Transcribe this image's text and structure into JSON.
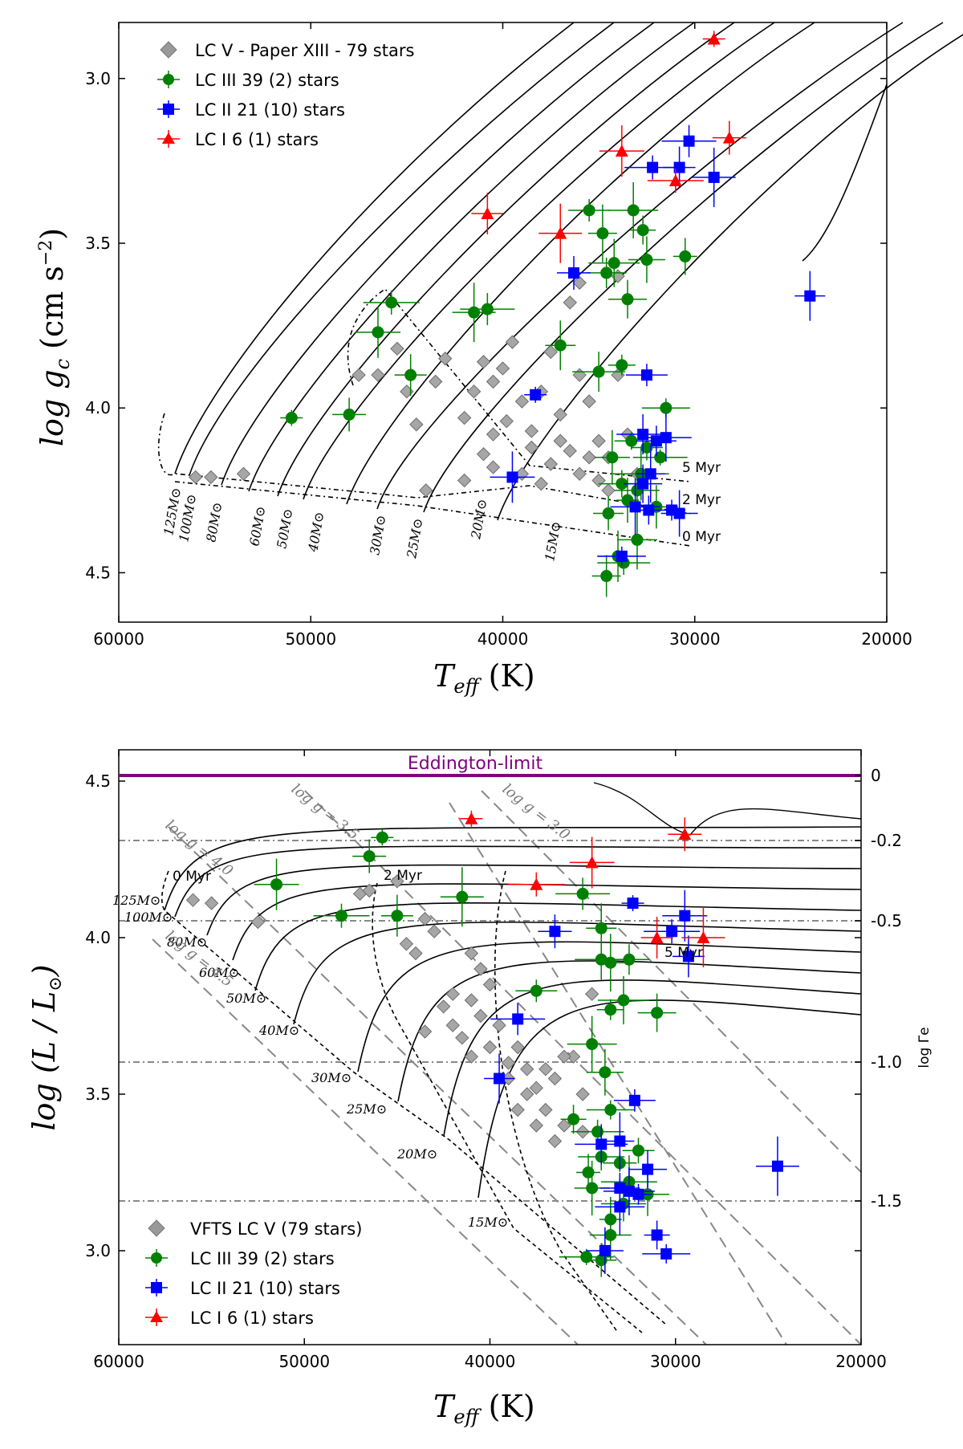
{
  "chart_data": [
    {
      "type": "scatter",
      "title": "",
      "xlabel": "T_eff (K)",
      "ylabel": "log g_c (cm s^-2)",
      "xlim": [
        60000,
        20000
      ],
      "ylim": [
        4.65,
        2.83
      ],
      "xticks": [
        "60000",
        "50000",
        "40000",
        "30000",
        "20000"
      ],
      "yticks": [
        "3.0",
        "3.5",
        "4.0",
        "4.5"
      ],
      "legend": [
        "LC V - Paper XIII - 79 stars",
        "LC III 39 (2) stars",
        "LC II  21 (10) stars",
        "LC I    6 (1) stars"
      ],
      "track_labels": [
        "125M⊙",
        "100M⊙",
        "80M⊙",
        "60M⊙",
        "50M⊙",
        "40M⊙",
        "30M⊙",
        "25M⊙",
        "20M⊙",
        "15M⊙"
      ],
      "isochrone_labels": [
        "5 Myr",
        "2 Myr",
        "0 Myr"
      ],
      "series": [
        {
          "name": "LC V",
          "marker": "diamond",
          "color": "#999999",
          "points": [
            [
              56000,
              4.21
            ],
            [
              55200,
              4.21
            ],
            [
              53500,
              4.2
            ],
            [
              47500,
              3.9
            ],
            [
              46500,
              3.9
            ],
            [
              45500,
              3.82
            ],
            [
              45000,
              3.95
            ],
            [
              44500,
              4.05
            ],
            [
              43500,
              3.92
            ],
            [
              43000,
              3.85
            ],
            [
              42000,
              4.03
            ],
            [
              41500,
              3.95
            ],
            [
              41000,
              3.86
            ],
            [
              40500,
              3.92
            ],
            [
              40000,
              3.88
            ],
            [
              39800,
              4.04
            ],
            [
              39500,
              3.8
            ],
            [
              39000,
              3.98
            ],
            [
              38500,
              4.12
            ],
            [
              38000,
              3.95
            ],
            [
              37500,
              3.83
            ],
            [
              37000,
              4.02
            ],
            [
              36500,
              3.68
            ],
            [
              36000,
              3.9
            ],
            [
              35500,
              3.98
            ],
            [
              35000,
              4.1
            ],
            [
              34500,
              4.15
            ],
            [
              34000,
              3.9
            ],
            [
              33500,
              4.08
            ],
            [
              41000,
              4.14
            ],
            [
              42000,
              4.22
            ],
            [
              40500,
              4.18
            ],
            [
              39000,
              4.2
            ],
            [
              38000,
              4.23
            ],
            [
              37500,
              4.17
            ],
            [
              36500,
              4.13
            ],
            [
              36000,
              4.2
            ],
            [
              35500,
              4.15
            ],
            [
              35000,
              4.22
            ],
            [
              34500,
              4.25
            ],
            [
              44000,
              4.25
            ],
            [
              36000,
              3.62
            ],
            [
              34000,
              3.6
            ],
            [
              40500,
              4.08
            ],
            [
              38500,
              4.07
            ],
            [
              37000,
              4.1
            ],
            [
              33000,
              4.2
            ]
          ]
        },
        {
          "name": "LC III",
          "marker": "circle",
          "color": "#008000",
          "points": [
            [
              51000,
              4.03
            ],
            [
              48000,
              4.02
            ],
            [
              46500,
              3.77
            ],
            [
              45800,
              3.68
            ],
            [
              44800,
              3.9
            ],
            [
              41500,
              3.71
            ],
            [
              40800,
              3.7
            ],
            [
              37000,
              3.81
            ],
            [
              35500,
              3.4
            ],
            [
              35000,
              3.89
            ],
            [
              34800,
              3.47
            ],
            [
              34600,
              3.59
            ],
            [
              34200,
              3.56
            ],
            [
              33800,
              3.87
            ],
            [
              33500,
              3.67
            ],
            [
              33200,
              3.4
            ],
            [
              32700,
              3.46
            ],
            [
              32500,
              3.55
            ],
            [
              31500,
              4.0
            ],
            [
              30500,
              3.54
            ],
            [
              34300,
              4.15
            ],
            [
              33800,
              4.23
            ],
            [
              33500,
              4.28
            ],
            [
              33300,
              4.1
            ],
            [
              33000,
              4.25
            ],
            [
              32800,
              4.2
            ],
            [
              32500,
              4.12
            ],
            [
              32000,
              4.3
            ],
            [
              31800,
              4.15
            ],
            [
              34500,
              4.32
            ],
            [
              34000,
              4.45
            ],
            [
              33700,
              4.47
            ],
            [
              34600,
              4.51
            ],
            [
              33000,
              4.4
            ]
          ]
        },
        {
          "name": "LC II",
          "marker": "square",
          "color": "#0000ff",
          "points": [
            [
              38300,
              3.96
            ],
            [
              36300,
              3.59
            ],
            [
              39500,
              4.21
            ],
            [
              32200,
              3.27
            ],
            [
              30800,
              3.27
            ],
            [
              29000,
              3.3
            ],
            [
              30300,
              3.19
            ],
            [
              24000,
              3.66
            ],
            [
              32500,
              3.9
            ],
            [
              32700,
              4.08
            ],
            [
              32300,
              4.2
            ],
            [
              32000,
              4.1
            ],
            [
              31500,
              4.09
            ],
            [
              31200,
              4.31
            ],
            [
              32700,
              4.23
            ],
            [
              33100,
              4.3
            ],
            [
              32400,
              4.31
            ],
            [
              30800,
              4.32
            ],
            [
              33800,
              4.45
            ]
          ]
        },
        {
          "name": "LC I",
          "marker": "triangle",
          "color": "#ff0000",
          "points": [
            [
              29000,
              2.88
            ],
            [
              28200,
              3.18
            ],
            [
              33800,
              3.22
            ],
            [
              31000,
              3.31
            ],
            [
              40800,
              3.41
            ],
            [
              37000,
              3.47
            ]
          ]
        }
      ]
    },
    {
      "type": "scatter",
      "title": "",
      "xlabel": "T_eff (K)",
      "ylabel": "log(L/L⊙)",
      "y2label": "log Γe",
      "xlim": [
        60000,
        20000
      ],
      "ylim": [
        2.7,
        4.6
      ],
      "xticks": [
        "60000",
        "50000",
        "40000",
        "30000",
        "20000"
      ],
      "yticks": [
        "3.0",
        "3.5",
        "4.0",
        "4.5"
      ],
      "y2ticks": [
        "0",
        "-0.2",
        "-0.5",
        "-1.0",
        "-1.5"
      ],
      "eddington_label": "Eddington-limit",
      "logg_labels": [
        "log g = 3.0",
        "log g = 3.5",
        "log g = 4.0",
        "log g = 4.5"
      ],
      "legend": [
        "VFTS LC V (79 stars)",
        "LC III 39 (2) stars",
        "LC II  21 (10) stars",
        "LC I    6 (1) stars"
      ],
      "track_labels": [
        "125M⊙",
        "100M⊙",
        "80M⊙",
        "60M⊙",
        "50M⊙",
        "40M⊙",
        "30M⊙",
        "25M⊙",
        "20M⊙",
        "15M⊙"
      ],
      "isochrone_labels": [
        "0 Myr",
        "2 Myr",
        "5 Myr"
      ],
      "series": [
        {
          "name": "LC V",
          "marker": "diamond",
          "color": "#999999",
          "points": [
            [
              56000,
              4.12
            ],
            [
              55000,
              4.11
            ],
            [
              52500,
              4.05
            ],
            [
              47000,
              4.14
            ],
            [
              46500,
              4.15
            ],
            [
              45000,
              4.18
            ],
            [
              44500,
              3.98
            ],
            [
              44000,
              3.95
            ],
            [
              43500,
              4.06
            ],
            [
              43000,
              4.02
            ],
            [
              42500,
              3.78
            ],
            [
              42000,
              3.72
            ],
            [
              41500,
              3.68
            ],
            [
              41000,
              3.8
            ],
            [
              40500,
              3.9
            ],
            [
              40000,
              3.85
            ],
            [
              39500,
              3.72
            ],
            [
              39000,
              3.6
            ],
            [
              38500,
              3.65
            ],
            [
              38000,
              3.58
            ],
            [
              37500,
              3.52
            ],
            [
              37000,
              3.45
            ],
            [
              36500,
              3.55
            ],
            [
              36000,
              3.4
            ],
            [
              35500,
              3.62
            ],
            [
              35000,
              3.38
            ],
            [
              34500,
              3.82
            ],
            [
              40000,
              3.65
            ],
            [
              39000,
              3.55
            ],
            [
              38000,
              3.5
            ],
            [
              37000,
              3.58
            ],
            [
              36000,
              3.62
            ],
            [
              35000,
              3.5
            ],
            [
              41000,
              3.62
            ],
            [
              40500,
              3.75
            ],
            [
              37500,
              3.4
            ],
            [
              36500,
              3.35
            ],
            [
              43500,
              3.7
            ],
            [
              42000,
              3.82
            ],
            [
              41000,
              3.95
            ],
            [
              38500,
              3.45
            ]
          ]
        },
        {
          "name": "LC III",
          "marker": "circle",
          "color": "#008000",
          "points": [
            [
              45800,
              4.32
            ],
            [
              46500,
              4.26
            ],
            [
              51500,
              4.17
            ],
            [
              48000,
              4.07
            ],
            [
              45000,
              4.07
            ],
            [
              41500,
              4.13
            ],
            [
              35000,
              4.14
            ],
            [
              34000,
              4.03
            ],
            [
              37500,
              3.83
            ],
            [
              34000,
              3.93
            ],
            [
              33500,
              3.92
            ],
            [
              32500,
              3.93
            ],
            [
              32800,
              3.8
            ],
            [
              33500,
              3.77
            ],
            [
              31000,
              3.76
            ],
            [
              34500,
              3.66
            ],
            [
              35500,
              3.42
            ],
            [
              33800,
              3.57
            ],
            [
              33500,
              3.45
            ],
            [
              34700,
              3.25
            ],
            [
              34500,
              3.2
            ],
            [
              34000,
              3.3
            ],
            [
              33500,
              3.1
            ],
            [
              33000,
              3.28
            ],
            [
              32800,
              3.15
            ],
            [
              32500,
              3.22
            ],
            [
              32000,
              3.32
            ],
            [
              31500,
              3.18
            ],
            [
              34800,
              2.98
            ],
            [
              34000,
              2.97
            ],
            [
              33500,
              3.05
            ],
            [
              34200,
              3.38
            ]
          ]
        },
        {
          "name": "LC II",
          "marker": "square",
          "color": "#0000ff",
          "points": [
            [
              32300,
              4.11
            ],
            [
              36500,
              4.02
            ],
            [
              29500,
              4.07
            ],
            [
              30200,
              4.02
            ],
            [
              29300,
              3.94
            ],
            [
              24500,
              3.27
            ],
            [
              38500,
              3.74
            ],
            [
              39500,
              3.55
            ],
            [
              32200,
              3.48
            ],
            [
              34000,
              3.34
            ],
            [
              33000,
              3.35
            ],
            [
              33000,
              3.2
            ],
            [
              32500,
              3.19
            ],
            [
              32000,
              3.18
            ],
            [
              31500,
              3.26
            ],
            [
              33000,
              3.14
            ],
            [
              31000,
              3.05
            ],
            [
              33800,
              3.0
            ],
            [
              30500,
              2.99
            ]
          ]
        },
        {
          "name": "LC I",
          "marker": "triangle",
          "color": "#ff0000",
          "points": [
            [
              41000,
              4.38
            ],
            [
              29500,
              4.33
            ],
            [
              34500,
              4.24
            ],
            [
              37500,
              4.17
            ],
            [
              31000,
              4.0
            ],
            [
              28500,
              4.0
            ]
          ]
        }
      ]
    }
  ]
}
